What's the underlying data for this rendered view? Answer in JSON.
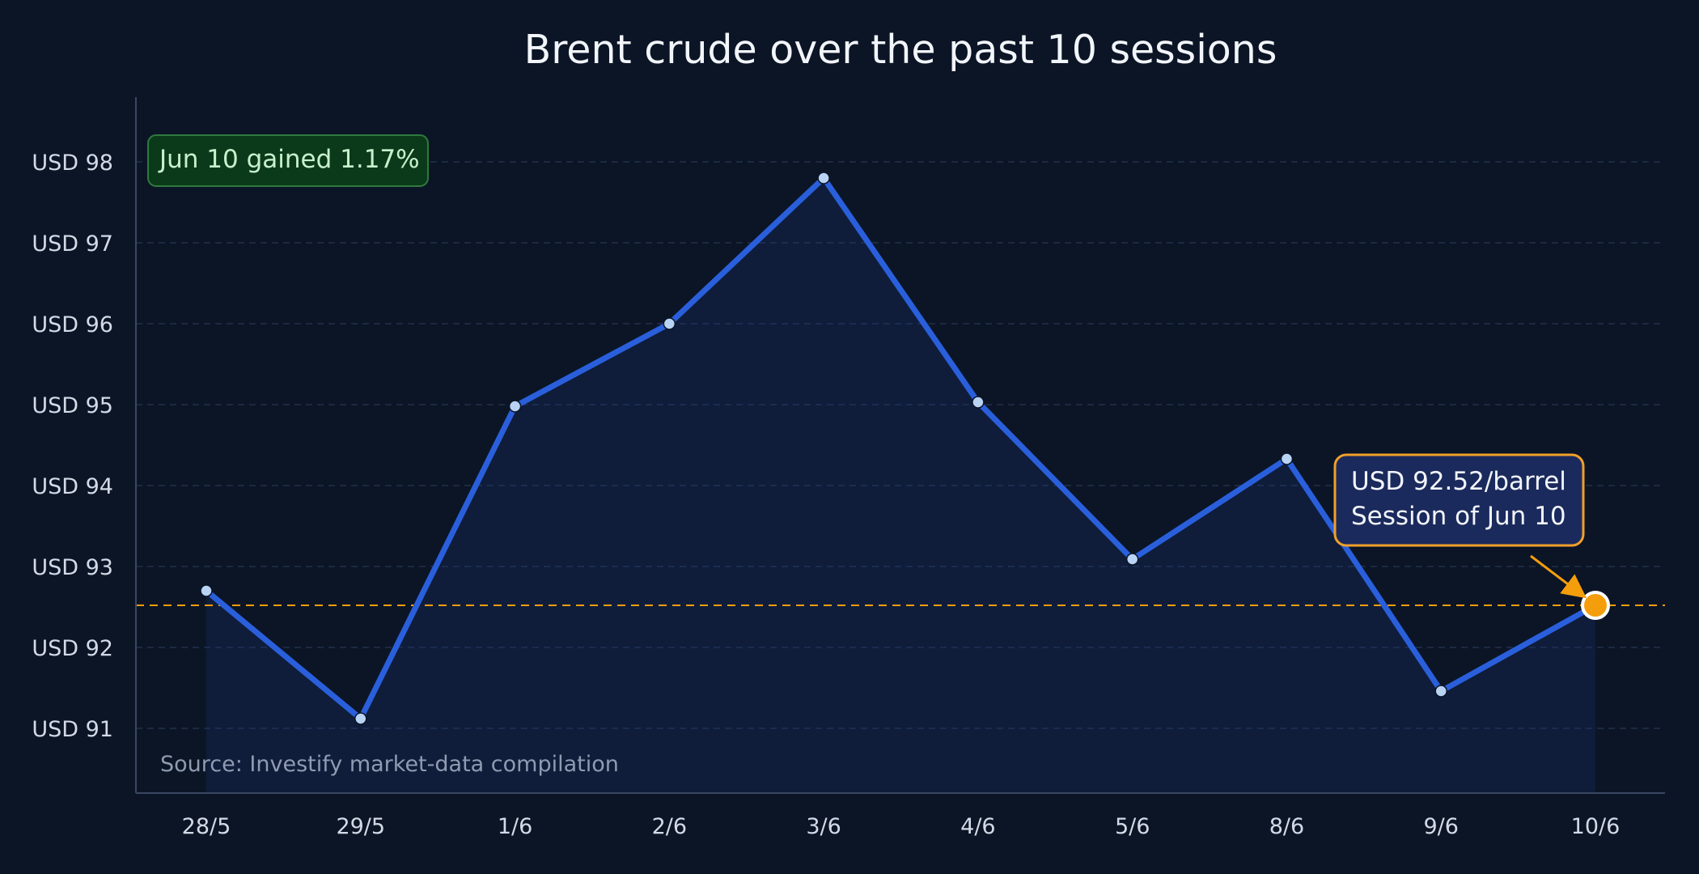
{
  "chart_data": {
    "type": "line",
    "title": "Brent crude over the past 10 sessions",
    "xlabel": "",
    "ylabel": "",
    "categories": [
      "28/5",
      "29/5",
      "1/6",
      "2/6",
      "3/6",
      "4/6",
      "5/6",
      "8/6",
      "9/6",
      "10/6"
    ],
    "series": [
      {
        "values": [
          92.7,
          91.12,
          94.98,
          96.0,
          97.8,
          95.03,
          93.09,
          94.33,
          91.46,
          92.52
        ]
      }
    ],
    "yticks": [
      91,
      92,
      93,
      94,
      95,
      96,
      97,
      98
    ],
    "ytick_labels": [
      "USD 91",
      "USD 92",
      "USD 93",
      "USD 94",
      "USD 95",
      "USD 96",
      "USD 97",
      "USD 98"
    ],
    "ylim": [
      90.2,
      98.8
    ],
    "grid": true,
    "reference_line": {
      "value": 92.52,
      "style": "dashed"
    },
    "badge": "Jun 10 gained 1.17%",
    "callout": {
      "line1": "USD 92.52/barrel",
      "line2": "Session of Jun 10",
      "target_category": "10/6"
    },
    "source": "Source: Investify market-data compilation",
    "colors": {
      "background": "#0b1526",
      "line": "#2a5fdc",
      "point": "#b9d3f5",
      "highlight": "#f59e0b",
      "badge_fill": "#0b3a1a",
      "badge_border": "#2f7a3c",
      "callout_fill": "#1b2a5c"
    }
  }
}
